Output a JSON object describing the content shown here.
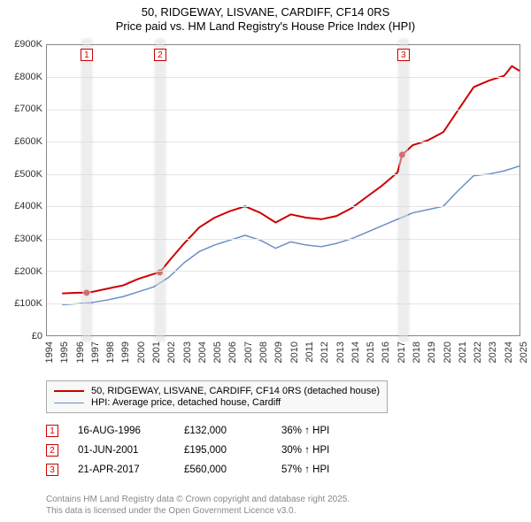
{
  "title": {
    "line1": "50, RIDGEWAY, LISVANE, CARDIFF, CF14 0RS",
    "line2": "Price paid vs. HM Land Registry's House Price Index (HPI)"
  },
  "chart": {
    "type": "line",
    "background_color": "#ffffff",
    "grid_color": "#e5e5e5",
    "border_color": "#888888",
    "x_axis": {
      "years": [
        1994,
        1995,
        1996,
        1997,
        1998,
        1999,
        2000,
        2001,
        2002,
        2003,
        2004,
        2005,
        2006,
        2007,
        2008,
        2009,
        2010,
        2011,
        2012,
        2013,
        2014,
        2015,
        2016,
        2017,
        2018,
        2019,
        2020,
        2021,
        2022,
        2023,
        2024,
        2025
      ],
      "label_fontsize": 11,
      "rotation_deg": -90
    },
    "y_axis": {
      "ticks": [
        0,
        100,
        200,
        300,
        400,
        500,
        600,
        700,
        800,
        900
      ],
      "tick_labels": [
        "£0",
        "£100K",
        "£200K",
        "£300K",
        "£400K",
        "£500K",
        "£600K",
        "£700K",
        "£800K",
        "£900K"
      ],
      "ymin": 0,
      "ymax": 900,
      "label_fontsize": 11
    },
    "series": {
      "property": {
        "label": "50, RIDGEWAY, LISVANE, CARDIFF, CF14 0RS (detached house)",
        "color": "#cc0000",
        "line_width": 2,
        "points": [
          [
            1995.0,
            130
          ],
          [
            1996.0,
            132
          ],
          [
            1996.6,
            132
          ],
          [
            1997.0,
            135
          ],
          [
            1998.0,
            145
          ],
          [
            1999.0,
            155
          ],
          [
            2000.0,
            175
          ],
          [
            2001.0,
            190
          ],
          [
            2001.4,
            195
          ],
          [
            2002.0,
            230
          ],
          [
            2003.0,
            285
          ],
          [
            2004.0,
            335
          ],
          [
            2005.0,
            365
          ],
          [
            2006.0,
            385
          ],
          [
            2007.0,
            400
          ],
          [
            2008.0,
            380
          ],
          [
            2009.0,
            350
          ],
          [
            2010.0,
            375
          ],
          [
            2011.0,
            365
          ],
          [
            2012.0,
            360
          ],
          [
            2013.0,
            370
          ],
          [
            2014.0,
            395
          ],
          [
            2015.0,
            430
          ],
          [
            2016.0,
            465
          ],
          [
            2017.0,
            505
          ],
          [
            2017.3,
            560
          ],
          [
            2018.0,
            590
          ],
          [
            2019.0,
            605
          ],
          [
            2020.0,
            630
          ],
          [
            2021.0,
            700
          ],
          [
            2022.0,
            770
          ],
          [
            2023.0,
            790
          ],
          [
            2024.0,
            805
          ],
          [
            2024.5,
            835
          ],
          [
            2025.0,
            820
          ]
        ],
        "sale_markers": [
          {
            "x": 1996.6,
            "y": 132
          },
          {
            "x": 2001.4,
            "y": 195
          },
          {
            "x": 2017.3,
            "y": 560
          }
        ]
      },
      "hpi": {
        "label": "HPI: Average price, detached house, Cardiff",
        "color": "#6a8fc5",
        "line_width": 1.5,
        "points": [
          [
            1995.0,
            95
          ],
          [
            1996.0,
            98
          ],
          [
            1997.0,
            102
          ],
          [
            1998.0,
            110
          ],
          [
            1999.0,
            120
          ],
          [
            2000.0,
            135
          ],
          [
            2001.0,
            150
          ],
          [
            2002.0,
            180
          ],
          [
            2003.0,
            225
          ],
          [
            2004.0,
            260
          ],
          [
            2005.0,
            280
          ],
          [
            2006.0,
            295
          ],
          [
            2007.0,
            310
          ],
          [
            2008.0,
            295
          ],
          [
            2009.0,
            270
          ],
          [
            2010.0,
            290
          ],
          [
            2011.0,
            280
          ],
          [
            2012.0,
            275
          ],
          [
            2013.0,
            285
          ],
          [
            2014.0,
            300
          ],
          [
            2015.0,
            320
          ],
          [
            2016.0,
            340
          ],
          [
            2017.0,
            360
          ],
          [
            2018.0,
            380
          ],
          [
            2019.0,
            390
          ],
          [
            2020.0,
            400
          ],
          [
            2021.0,
            450
          ],
          [
            2022.0,
            495
          ],
          [
            2023.0,
            500
          ],
          [
            2024.0,
            510
          ],
          [
            2025.0,
            525
          ]
        ]
      }
    },
    "sale_bands": {
      "band_color": "rgba(220,220,220,0.5)",
      "box_border": "#cc0000",
      "positions": [
        {
          "idx": "1",
          "x": 1996.6
        },
        {
          "idx": "2",
          "x": 2001.4
        },
        {
          "idx": "3",
          "x": 2017.3
        }
      ]
    }
  },
  "legend": {
    "background": "#f8f8f8",
    "border_color": "#aaaaaa",
    "fontsize": 11
  },
  "sales_table": {
    "rows": [
      {
        "idx": "1",
        "date": "16-AUG-1996",
        "price": "£132,000",
        "pct": "36% ↑ HPI"
      },
      {
        "idx": "2",
        "date": "01-JUN-2001",
        "price": "£195,000",
        "pct": "30% ↑ HPI"
      },
      {
        "idx": "3",
        "date": "21-APR-2017",
        "price": "£560,000",
        "pct": "57% ↑ HPI"
      }
    ],
    "box_border": "#cc0000"
  },
  "footer": {
    "line1": "Contains HM Land Registry data © Crown copyright and database right 2025.",
    "line2": "This data is licensed under the Open Government Licence v3.0.",
    "color": "#888888",
    "fontsize": 10
  }
}
